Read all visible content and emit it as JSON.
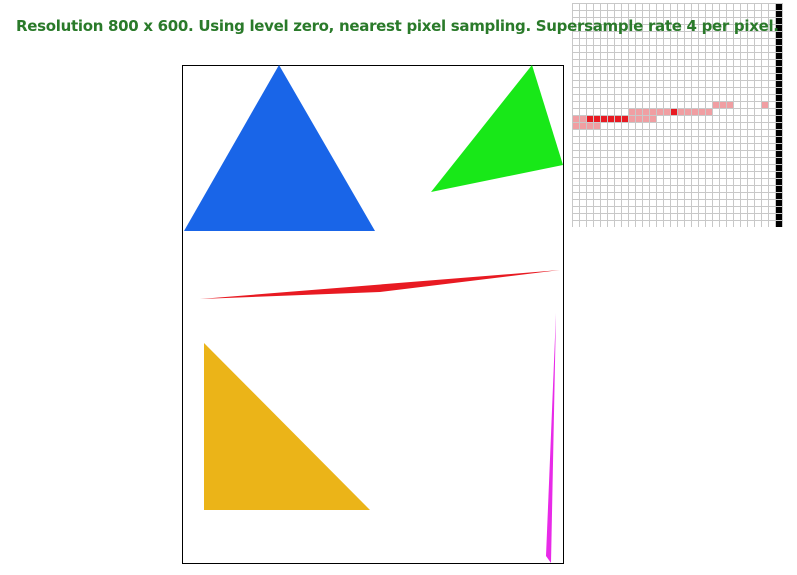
{
  "status_text": "Resolution 800 x 600. Using level zero, nearest pixel sampling. Supersample rate 4 per pixel.",
  "colors": {
    "status_text": "#2a7a2a",
    "frame": "#000000",
    "blue_triangle": "#1965e8",
    "green_triangle": "#18e818",
    "red_triangle": "#e81a22",
    "yellow_triangle": "#ebb418",
    "magenta_triangle": "#e82ae8",
    "zoom_grid": "#c8c8c8",
    "zoom_highlight": "#f09ea2",
    "zoom_solid": "#e81a22",
    "zoom_edge": "#000000"
  },
  "shapes": [
    {
      "name": "blue-triangle",
      "color_key": "blue_triangle"
    },
    {
      "name": "green-triangle",
      "color_key": "green_triangle"
    },
    {
      "name": "red-triangle",
      "color_key": "red_triangle"
    },
    {
      "name": "yellow-triangle",
      "color_key": "yellow_triangle"
    },
    {
      "name": "magenta-triangle",
      "color_key": "magenta_triangle"
    }
  ]
}
